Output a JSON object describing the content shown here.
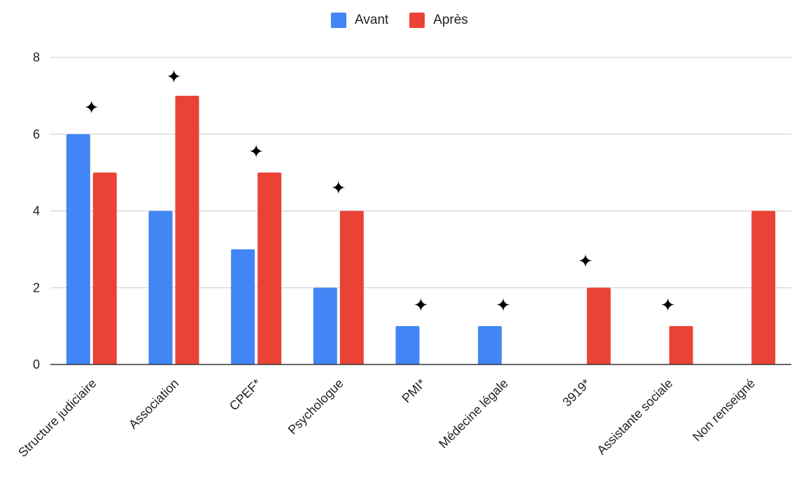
{
  "chart_data": {
    "type": "bar",
    "title": "",
    "xlabel": "",
    "ylabel": "",
    "ylim": [
      0,
      8
    ],
    "yticks": [
      0,
      2,
      4,
      6,
      8
    ],
    "grid": true,
    "legend_position": "top-center",
    "categories": [
      "Structure judiciaire",
      "Association",
      "CPEF*",
      "Psychologue",
      "PMI*",
      "Médecine légale",
      "3919*",
      "Assistante sociale",
      "Non renseigné"
    ],
    "series": [
      {
        "name": "Avant",
        "color": "#4285f4",
        "values": [
          6,
          4,
          3,
          2,
          1,
          1,
          0,
          0,
          0
        ]
      },
      {
        "name": "Après",
        "color": "#ea4335",
        "values": [
          5,
          7,
          5,
          4,
          0,
          0,
          2,
          1,
          4
        ]
      }
    ],
    "annotations": {
      "marker": "✦",
      "marker_color": "#000000",
      "points": [
        {
          "category": "Structure judiciaire",
          "y": 6.7
        },
        {
          "category": "Association",
          "y": 7.5
        },
        {
          "category": "CPEF*",
          "y": 5.55
        },
        {
          "category": "Psychologue",
          "y": 4.6
        },
        {
          "category": "PMI*",
          "y": 1.55
        },
        {
          "category": "Médecine légale",
          "y": 1.55
        },
        {
          "category": "3919*",
          "y": 2.7
        },
        {
          "category": "Assistante sociale",
          "y": 1.55
        }
      ]
    }
  }
}
